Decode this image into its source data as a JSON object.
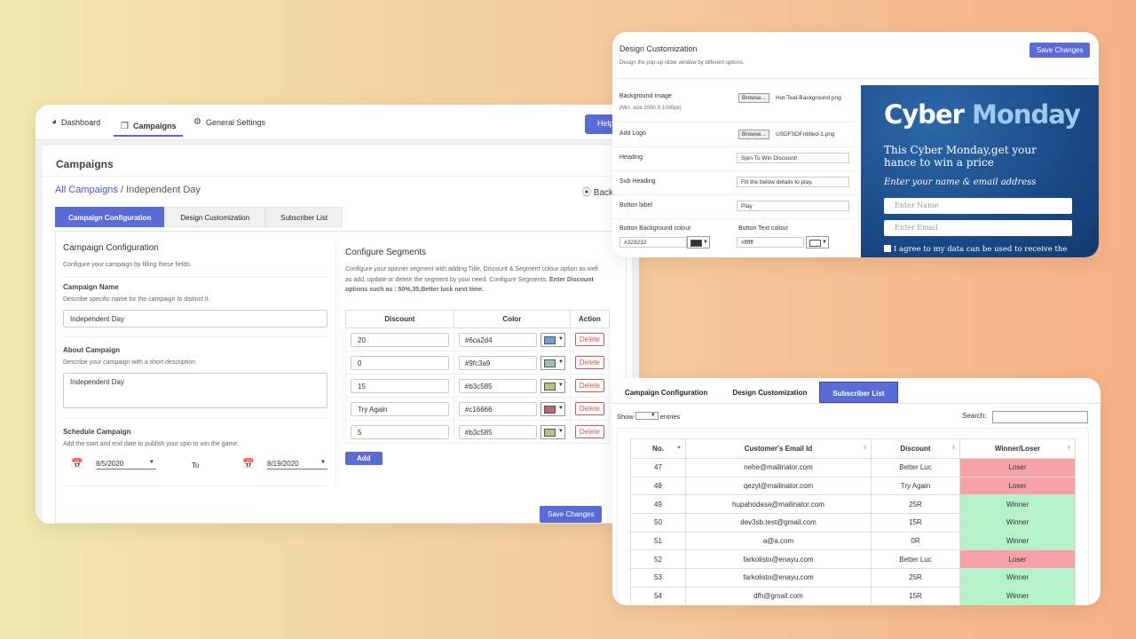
{
  "main": {
    "nav": {
      "dashboard": "Dashboard",
      "campaigns": "Campaigns",
      "general_settings": "General Settings",
      "help": "Help"
    },
    "page_title": "Campaigns",
    "breadcrumb": {
      "link": "All Campaigns",
      "sep": " / ",
      "current": "Independent Day"
    },
    "back": "Back",
    "tabs": {
      "config": "Campaign Configuration",
      "design": "Design Customization",
      "subscribers": "Subscriber List"
    },
    "config": {
      "title": "Campaign Configuration",
      "desc": "Configure your campaign by filling these fields.",
      "name_label": "Campaign Name",
      "name_desc": "Describe specific name for the campaign to distinct it.",
      "name_value": "Independent Day",
      "about_label": "About Campaign",
      "about_desc": "Describe your campaign with a short description",
      "about_value": "Independent Day",
      "schedule_label": "Schedule Campaign",
      "schedule_desc": "Add the start and end date to publish your spin to win the game.",
      "start_date": "8/5/2020",
      "to": "To",
      "end_date": "8/19/2020"
    },
    "segments": {
      "title": "Configure Segments",
      "desc": "Configure your spinner segment with adding Title, Discount & Segment colour option as well as add, update or delete the segment by your need. Configure Segments.",
      "desc_bold": "Enter Discount options such as : 50%,35,Better luck next time.",
      "headers": {
        "discount": "Discount",
        "color": "Color",
        "action": "Action"
      },
      "rows": [
        {
          "discount": "20",
          "color": "#6ca2d4",
          "swatch": "#6ca2d4"
        },
        {
          "discount": "0",
          "color": "#9fc3a9",
          "swatch": "#9fc3a9"
        },
        {
          "discount": "15",
          "color": "#b3c585",
          "swatch": "#b3c585"
        },
        {
          "discount": "Try Again",
          "color": "#c16666",
          "swatch": "#c16666"
        },
        {
          "discount": "5",
          "color": "#b3c585",
          "swatch": "#b3c585"
        }
      ],
      "delete": "Delete",
      "add": "Add"
    },
    "save": "Save Changes"
  },
  "design": {
    "title": "Design Customization",
    "subtitle": "Design the pop-up slider window by different options.",
    "save": "Save Changes",
    "bg_label": "Background Image",
    "bg_hint": "(Min. size 1000 X 1000px)",
    "browse": "Browse...",
    "bg_file": "Hot-Teal-Background.png",
    "logo_label": "Add Logo",
    "logo_file": "USDFSDFntitled-1.png",
    "heading_label": "Heading",
    "heading_value": "Spin To Win Discount!",
    "subheading_label": "Sub Heading",
    "subheading_value": "Fill the below details to play.",
    "button_label": "Button label",
    "button_value": "Play",
    "btn_bg_label": "Button Background colour",
    "btn_bg_value": "#323232",
    "btn_text_label": "Button Text colour",
    "btn_text_value": "#ffffff",
    "preview": {
      "title_a": "Cyber ",
      "title_b": "Monday",
      "line1": "This Cyber Monday,get your",
      "line2": "hance to win a price",
      "prompt": "Enter your name & email address",
      "name_ph": "Enter Name",
      "email_ph": "Enter Email",
      "agree": "I agree to my data can be used to receive the"
    }
  },
  "subs": {
    "tabs": {
      "config": "Campaign Configuration",
      "design": "Design Customization",
      "subscribers": "Subscriber List"
    },
    "show": "Show",
    "entries": "entries",
    "search": "Search:",
    "headers": {
      "no": "No.",
      "email": "Customer's Email Id",
      "discount": "Discount",
      "result": "Winner/Loser"
    },
    "rows": [
      {
        "no": "47",
        "email": "nehe@mailinator.com",
        "discount": "Better Luc",
        "result": "Loser"
      },
      {
        "no": "48",
        "email": "qezyl@mailinator.com",
        "discount": "Try Again",
        "result": "Loser"
      },
      {
        "no": "49",
        "email": "hupahodasa@mailinator.com",
        "discount": "25R",
        "result": "Winner"
      },
      {
        "no": "50",
        "email": "dev3sb.test@gmail.com",
        "discount": "15R",
        "result": "Winner"
      },
      {
        "no": "51",
        "email": "a@a.com",
        "discount": "0R",
        "result": "Winner"
      },
      {
        "no": "52",
        "email": "farkolisto@enayu.com",
        "discount": "Better Luc",
        "result": "Loser"
      },
      {
        "no": "53",
        "email": "farkolisto@enayu.com",
        "discount": "25R",
        "result": "Winner"
      },
      {
        "no": "54",
        "email": "dfh@gmail.com",
        "discount": "15R",
        "result": "Winner"
      }
    ]
  },
  "colors": {
    "accent": "#5a6bd5",
    "loser": "#f6a3a8",
    "winner": "#b4f3c7",
    "danger": "#d9534f"
  }
}
